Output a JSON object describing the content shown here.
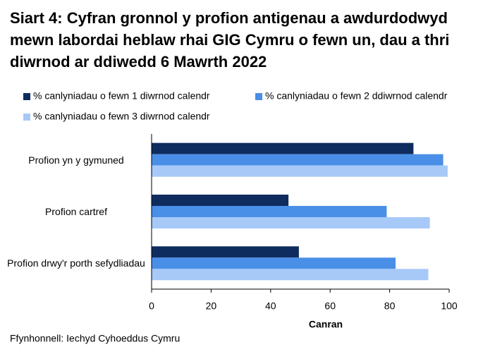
{
  "chart_data": {
    "type": "hbar",
    "title": "Siart 4: Cyfran gronnol y profion antigenau a awdurdodwyd mewn labordai heblaw rhai GIG Cymru o fewn un, dau a thri diwrnod ar ddiwedd 6 Mawrth 2022",
    "categories": [
      "Profion yn y gymuned",
      "Profion cartref",
      "Profion drwy'r porth sefydliadau"
    ],
    "series": [
      {
        "name": "% canlyniadau o fewn 1 diwrnod calendr",
        "color": "#0f2c5e",
        "values": [
          88,
          46,
          49.5
        ]
      },
      {
        "name": "% canlyniadau o fewn 2 ddiwrnod calendr",
        "color": "#4a8fe7",
        "values": [
          98,
          79,
          82
        ]
      },
      {
        "name": "% canlyniadau o fewn 3 diwrnod calendr",
        "color": "#a6c9f8",
        "values": [
          99.5,
          93.5,
          93
        ]
      }
    ],
    "xlabel": "Canran",
    "xlim": [
      0,
      100
    ],
    "xticks": [
      0,
      20,
      40,
      60,
      80,
      100
    ],
    "source": "Ffynhonnell: Iechyd Cyhoeddus Cymru"
  }
}
